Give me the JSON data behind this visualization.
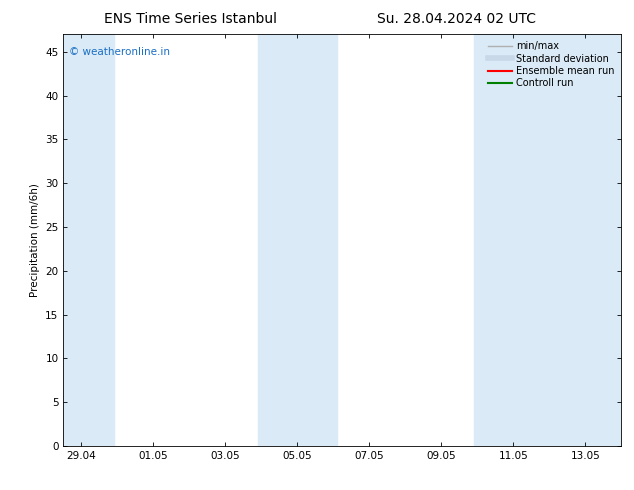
{
  "title_left": "ENS Time Series Istanbul",
  "title_right": "Su. 28.04.2024 02 UTC",
  "ylabel": "Precipitation (mm/6h)",
  "xlabel_ticks": [
    "29.04",
    "01.05",
    "03.05",
    "05.05",
    "07.05",
    "09.05",
    "11.05",
    "13.05"
  ],
  "x_tick_positions": [
    0,
    2,
    4,
    6,
    8,
    10,
    12,
    14
  ],
  "xlim": [
    -0.5,
    15.0
  ],
  "ylim": [
    0,
    47
  ],
  "yticks": [
    0,
    5,
    10,
    15,
    20,
    25,
    30,
    35,
    40,
    45
  ],
  "shaded_bands": [
    {
      "x_start": -0.5,
      "x_end": 0.9,
      "color": "#daeaf6"
    },
    {
      "x_start": 4.9,
      "x_end": 7.1,
      "color": "#daeaf6"
    },
    {
      "x_start": 10.9,
      "x_end": 15.0,
      "color": "#daeaf6"
    }
  ],
  "legend_labels": [
    "min/max",
    "Standard deviation",
    "Ensemble mean run",
    "Controll run"
  ],
  "legend_colors": [
    "#b0b0b0",
    "#c8d8e8",
    "#ff0000",
    "#008000"
  ],
  "legend_linewidths": [
    1.0,
    4.0,
    1.5,
    1.5
  ],
  "watermark_text": "© weatheronline.in",
  "watermark_color": "#1a6fc4",
  "bg_color": "#ffffff",
  "plot_bg_color": "#ffffff",
  "tick_fontsize": 7.5,
  "title_fontsize": 10,
  "label_fontsize": 7.5,
  "watermark_fontsize": 7.5,
  "legend_fontsize": 7.0
}
